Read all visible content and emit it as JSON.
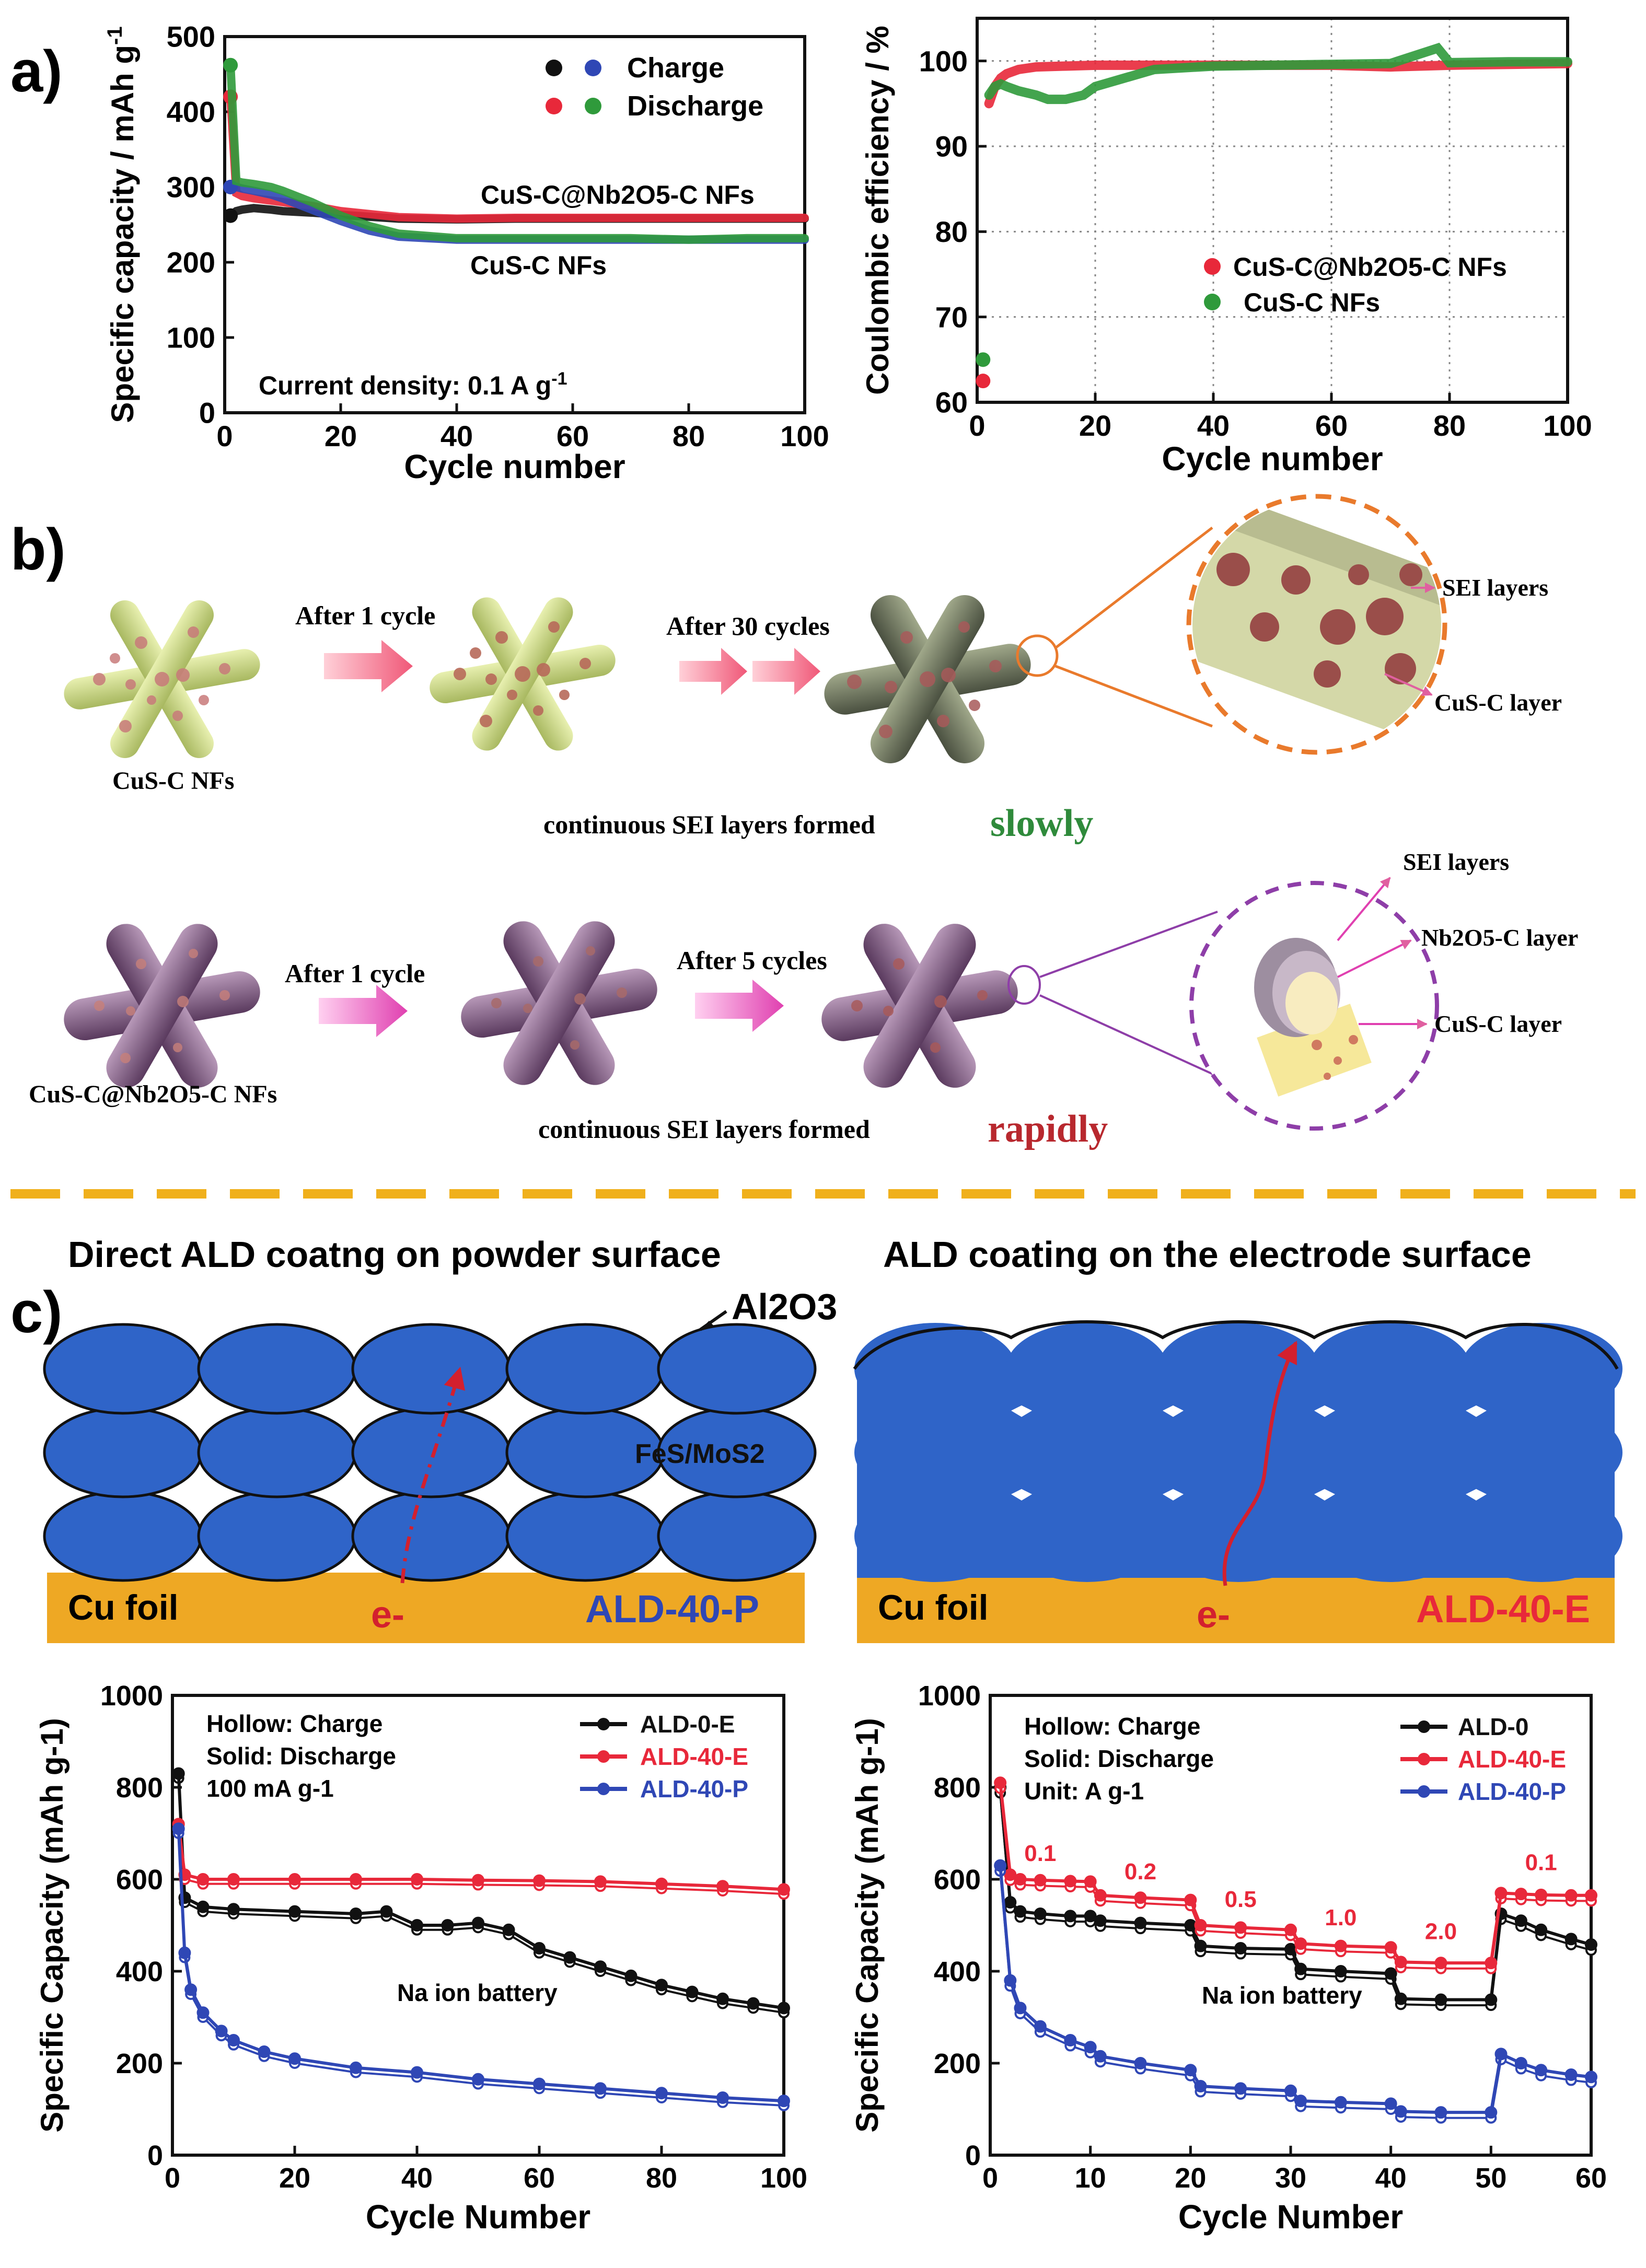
{
  "panel_labels": {
    "a": "a)",
    "b": "b)",
    "c": "c)"
  },
  "colors": {
    "black": "#111111",
    "red": "#e8283a",
    "green": "#2f9a3b",
    "blue": "#2f47b5",
    "orange": "#e97a2c",
    "purple": "#8e3ea8",
    "gold": "#f0b01c",
    "particle_blue": "#3366cc",
    "cu_foil": "#eea824"
  },
  "panel_a_left": {
    "xlabel": "Cycle number",
    "ylabel": "Specific capacity / mAh g-1",
    "ylabel_main": "Specific capacity / mAh g",
    "ylabel_sup": "-1",
    "legend": {
      "charge": "Charge",
      "discharge": "Discharge"
    },
    "annotation_current": "Current density: 0.1 A g",
    "annotation_current_sup": "-1",
    "series_labels": {
      "nb": "CuS-C@Nb2O5-C NFs",
      "cus": "CuS-C NFs"
    }
  },
  "panel_a_right": {
    "xlabel": "Cycle number",
    "ylabel": "Coulombic efficiency / %",
    "legend": {
      "nb": "CuS-C@Nb2O5-C NFs",
      "cus": "CuS-C NFs"
    }
  },
  "panel_b": {
    "row1": {
      "label_start": "CuS-C NFs",
      "arrow1": "After 1 cycle",
      "arrow2": "After 30 cycles",
      "zoom_sei": "SEI layers",
      "zoom_core": "CuS-C layer",
      "caption": "continuous SEI layers formed",
      "caption_emph": "slowly"
    },
    "row2": {
      "label_start": "CuS-C@Nb2O5-C NFs",
      "arrow1": "After 1 cycle",
      "arrow2": "After 5 cycles",
      "zoom_sei": "SEI layers",
      "zoom_nb": "Nb2O5-C layer",
      "zoom_core": "CuS-C layer",
      "caption": "continuous SEI layers formed",
      "caption_emph": "rapidly"
    }
  },
  "panel_c": {
    "left_title": "Direct ALD coatng on powder surface",
    "right_title": "ALD coating on the electrode surface",
    "al2o3": "Al2O3",
    "particle_label": "FeS/MoS2",
    "cu_foil": "Cu foil",
    "electron": "e-",
    "left_scheme_tag": "ALD-40-P",
    "right_scheme_tag": "ALD-40-E"
  },
  "panel_c_left_chart": {
    "xlabel": "Cycle Number",
    "ylabel": "Specific Capacity (mAh g-1)",
    "notes": [
      "Hollow: Charge",
      "Solid: Discharge",
      "100 mA g-1"
    ],
    "legend": [
      "ALD-0-E",
      "ALD-40-E",
      "ALD-40-P"
    ],
    "annotation": "Na ion battery"
  },
  "panel_c_right_chart": {
    "xlabel": "Cycle Number",
    "ylabel": "Specific Capacity (mAh g-1)",
    "notes": [
      "Hollow: Charge",
      "Solid: Discharge",
      "Unit: A g-1"
    ],
    "legend": [
      "ALD-0",
      "ALD-40-E",
      "ALD-40-P"
    ],
    "annotation": "Na ion battery",
    "rate_labels": [
      "0.1",
      "0.2",
      "0.5",
      "1.0",
      "2.0",
      "0.1"
    ]
  },
  "chart_data": [
    {
      "id": "a_left",
      "type": "scatter",
      "xlabel": "Cycle number",
      "ylabel": "Specific capacity / mAh g-1",
      "xlim": [
        0,
        100
      ],
      "ylim": [
        0,
        500
      ],
      "xticks": [
        0,
        20,
        40,
        60,
        80,
        100
      ],
      "yticks": [
        0,
        100,
        200,
        300,
        400,
        500
      ],
      "series": [
        {
          "name": "CuS-C@Nb2O5-C NFs Charge",
          "color": "#111111",
          "x": [
            1,
            2,
            3,
            5,
            8,
            10,
            15,
            20,
            30,
            40,
            50,
            60,
            70,
            80,
            90,
            100
          ],
          "y": [
            262,
            268,
            270,
            272,
            270,
            268,
            266,
            263,
            258,
            257,
            258,
            258,
            258,
            258,
            258,
            258
          ]
        },
        {
          "name": "CuS-C@Nb2O5-C NFs Discharge",
          "color": "#e8283a",
          "x": [
            1,
            2,
            3,
            5,
            8,
            10,
            15,
            20,
            30,
            40,
            50,
            60,
            70,
            80,
            90,
            100
          ],
          "y": [
            420,
            292,
            288,
            285,
            282,
            280,
            275,
            268,
            260,
            258,
            259,
            259,
            259,
            259,
            259,
            259
          ]
        },
        {
          "name": "CuS-C NFs Charge",
          "color": "#2f47b5",
          "x": [
            1,
            2,
            3,
            5,
            8,
            10,
            15,
            20,
            25,
            30,
            40,
            50,
            60,
            70,
            80,
            90,
            100
          ],
          "y": [
            300,
            300,
            298,
            295,
            290,
            285,
            270,
            255,
            242,
            234,
            230,
            230,
            230,
            230,
            230,
            230,
            230
          ]
        },
        {
          "name": "CuS-C NFs Discharge",
          "color": "#2f9a3b",
          "x": [
            1,
            2,
            3,
            5,
            8,
            10,
            15,
            20,
            25,
            30,
            40,
            50,
            60,
            70,
            80,
            90,
            100
          ],
          "y": [
            462,
            308,
            306,
            304,
            300,
            295,
            280,
            262,
            248,
            238,
            232,
            232,
            232,
            232,
            230,
            232,
            232
          ]
        }
      ]
    },
    {
      "id": "a_right",
      "type": "scatter",
      "xlabel": "Cycle number",
      "ylabel": "Coulombic efficiency / %",
      "xlim": [
        0,
        100
      ],
      "ylim": [
        60,
        105
      ],
      "xticks": [
        0,
        20,
        40,
        60,
        80,
        100
      ],
      "yticks": [
        60,
        70,
        80,
        90,
        100
      ],
      "grid": true,
      "series": [
        {
          "name": "CuS-C@Nb2O5-C NFs",
          "color": "#e8283a",
          "x": [
            1,
            2,
            3,
            4,
            5,
            7,
            10,
            15,
            20,
            30,
            40,
            50,
            60,
            70,
            80,
            90,
            100
          ],
          "y": [
            62.5,
            95,
            97,
            98,
            98.5,
            99,
            99.3,
            99.4,
            99.5,
            99.5,
            99.5,
            99.5,
            99.5,
            99.3,
            99.5,
            99.6,
            99.7
          ]
        },
        {
          "name": "CuS-C NFs",
          "color": "#2f9a3b",
          "x": [
            1,
            2,
            3,
            4,
            5,
            7,
            10,
            12,
            15,
            18,
            20,
            25,
            30,
            40,
            50,
            60,
            70,
            78,
            80,
            90,
            100
          ],
          "y": [
            65,
            96,
            97,
            97.3,
            97,
            96.5,
            96,
            95.5,
            95.5,
            96,
            97,
            98,
            99,
            99.4,
            99.5,
            99.6,
            99.7,
            101.5,
            99.8,
            99.9,
            99.9
          ]
        }
      ]
    },
    {
      "id": "c_left",
      "type": "line",
      "xlabel": "Cycle Number",
      "ylabel": "Specific Capacity (mAh g-1)",
      "xlim": [
        0,
        100
      ],
      "ylim": [
        0,
        1000
      ],
      "xticks": [
        0,
        20,
        40,
        60,
        80,
        100
      ],
      "yticks": [
        0,
        200,
        400,
        600,
        800,
        1000
      ],
      "series": [
        {
          "name": "ALD-0-E",
          "color": "#111111",
          "x": [
            1,
            2,
            5,
            10,
            20,
            30,
            35,
            40,
            45,
            50,
            55,
            60,
            65,
            70,
            75,
            80,
            85,
            90,
            95,
            100
          ],
          "y": [
            830,
            560,
            540,
            535,
            530,
            525,
            530,
            500,
            500,
            505,
            490,
            450,
            430,
            410,
            390,
            370,
            355,
            340,
            330,
            320
          ]
        },
        {
          "name": "ALD-40-E",
          "color": "#e8283a",
          "x": [
            1,
            2,
            5,
            10,
            20,
            30,
            40,
            50,
            60,
            70,
            80,
            90,
            100
          ],
          "y": [
            720,
            610,
            600,
            600,
            600,
            600,
            600,
            598,
            597,
            595,
            590,
            585,
            578
          ]
        },
        {
          "name": "ALD-40-P",
          "color": "#2f47b5",
          "x": [
            1,
            2,
            3,
            5,
            8,
            10,
            15,
            20,
            30,
            40,
            50,
            60,
            70,
            80,
            90,
            100
          ],
          "y": [
            710,
            440,
            360,
            310,
            270,
            250,
            225,
            210,
            190,
            180,
            165,
            155,
            145,
            135,
            125,
            118
          ]
        }
      ]
    },
    {
      "id": "c_right",
      "type": "line",
      "xlabel": "Cycle Number",
      "ylabel": "Specific Capacity (mAh g-1)",
      "xlim": [
        0,
        60
      ],
      "ylim": [
        0,
        1000
      ],
      "xticks": [
        0,
        10,
        20,
        30,
        40,
        50,
        60
      ],
      "yticks": [
        0,
        200,
        400,
        600,
        800,
        1000
      ],
      "series": [
        {
          "name": "ALD-0",
          "color": "#111111",
          "x": [
            1,
            2,
            3,
            5,
            8,
            10,
            11,
            15,
            20,
            21,
            25,
            30,
            31,
            35,
            40,
            41,
            45,
            50,
            51,
            53,
            55,
            58,
            60
          ],
          "y": [
            800,
            550,
            530,
            525,
            520,
            520,
            510,
            505,
            500,
            455,
            450,
            448,
            405,
            400,
            395,
            340,
            338,
            338,
            525,
            510,
            490,
            470,
            458
          ]
        },
        {
          "name": "ALD-40-E",
          "color": "#e8283a",
          "x": [
            1,
            2,
            3,
            5,
            8,
            10,
            11,
            15,
            20,
            21,
            25,
            30,
            31,
            35,
            40,
            41,
            45,
            50,
            51,
            53,
            55,
            58,
            60
          ],
          "y": [
            810,
            610,
            600,
            598,
            596,
            595,
            565,
            560,
            555,
            500,
            495,
            490,
            460,
            455,
            452,
            420,
            418,
            418,
            570,
            568,
            566,
            565,
            565
          ]
        },
        {
          "name": "ALD-40-P",
          "color": "#2f47b5",
          "x": [
            1,
            2,
            3,
            5,
            8,
            10,
            11,
            15,
            20,
            21,
            25,
            30,
            31,
            35,
            40,
            41,
            45,
            50,
            51,
            53,
            55,
            58,
            60
          ],
          "y": [
            630,
            380,
            320,
            280,
            250,
            235,
            215,
            200,
            185,
            150,
            145,
            140,
            118,
            115,
            112,
            95,
            93,
            93,
            220,
            200,
            185,
            175,
            170
          ]
        }
      ]
    }
  ]
}
